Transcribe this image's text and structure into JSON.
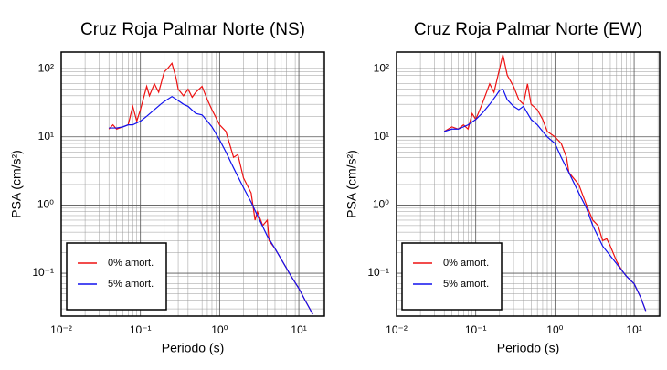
{
  "chart_data": [
    {
      "type": "line",
      "title": "Cruz Roja Palmar Norte (NS)",
      "xlabel": "Periodo (s)",
      "ylabel": "PSA (cm/s²)",
      "xscale": "log",
      "yscale": "log",
      "grid": true,
      "legend": "lower left",
      "xlim": [
        0.01,
        21
      ],
      "ylim": [
        0.0235,
        175
      ],
      "xticks": [
        {
          "value": 0.01,
          "label": "10⁻²"
        },
        {
          "value": 0.1,
          "label": "10⁻¹"
        },
        {
          "value": 1,
          "label": "10⁰"
        },
        {
          "value": 10,
          "label": "10¹"
        }
      ],
      "yticks": [
        {
          "value": 0.1,
          "label": "10⁻¹"
        },
        {
          "value": 1,
          "label": "10⁰"
        },
        {
          "value": 10,
          "label": "10¹"
        },
        {
          "value": 100,
          "label": "10²"
        }
      ],
      "xminorticks": [
        0.02,
        0.03,
        0.04,
        0.05,
        0.06,
        0.07,
        0.08,
        0.09,
        0.2,
        0.3,
        0.4,
        0.5,
        0.6,
        0.7,
        0.8,
        0.9,
        2,
        3,
        4,
        5,
        6,
        7,
        8,
        9,
        20
      ],
      "yminorticks": [
        0.03,
        0.04,
        0.05,
        0.06,
        0.07,
        0.08,
        0.09,
        0.2,
        0.3,
        0.4,
        0.5,
        0.6,
        0.7,
        0.8,
        0.9,
        2,
        3,
        4,
        5,
        6,
        7,
        8,
        9,
        20,
        30,
        40,
        50,
        60,
        70,
        80,
        90
      ],
      "series": [
        {
          "name": "0% amort.",
          "color": "#ee1111",
          "x": [
            0.04,
            0.045,
            0.05,
            0.06,
            0.07,
            0.08,
            0.09,
            0.1,
            0.12,
            0.13,
            0.15,
            0.17,
            0.2,
            0.22,
            0.25,
            0.28,
            0.3,
            0.35,
            0.4,
            0.45,
            0.5,
            0.6,
            0.7,
            0.8,
            1.0,
            1.2,
            1.5,
            1.7,
            2,
            2.5,
            2.8,
            3,
            3.5,
            4,
            4.2,
            5,
            6,
            8,
            10,
            12,
            15
          ],
          "values": [
            13,
            15,
            13,
            14,
            15,
            28,
            17,
            25,
            55,
            40,
            60,
            45,
            90,
            100,
            120,
            75,
            50,
            40,
            50,
            38,
            45,
            55,
            35,
            25,
            15,
            12,
            5,
            5.5,
            2.5,
            1.5,
            0.6,
            0.8,
            0.5,
            0.6,
            0.3,
            0.23,
            0.16,
            0.09,
            0.06,
            0.04,
            0.025
          ]
        },
        {
          "name": "5% amort.",
          "color": "#1111ee",
          "x": [
            0.04,
            0.05,
            0.06,
            0.07,
            0.08,
            0.1,
            0.12,
            0.15,
            0.18,
            0.2,
            0.25,
            0.3,
            0.35,
            0.4,
            0.5,
            0.6,
            0.7,
            0.8,
            1.0,
            1.2,
            1.5,
            2,
            2.5,
            3,
            4,
            5,
            6,
            8,
            10,
            12,
            15
          ],
          "values": [
            13.5,
            13.5,
            14,
            15,
            15,
            17,
            20,
            25,
            30,
            33,
            39,
            34,
            30,
            28,
            22,
            21,
            17,
            14,
            9,
            6,
            3.5,
            1.8,
            1.1,
            0.7,
            0.35,
            0.23,
            0.16,
            0.09,
            0.06,
            0.04,
            0.025
          ]
        }
      ]
    },
    {
      "type": "line",
      "title": "Cruz Roja Palmar Norte (EW)",
      "xlabel": "Periodo (s)",
      "ylabel": "PSA (cm/s²)",
      "xscale": "log",
      "yscale": "log",
      "grid": true,
      "legend": "lower left",
      "xlim": [
        0.01,
        21
      ],
      "ylim": [
        0.0235,
        175
      ],
      "xticks": [
        {
          "value": 0.01,
          "label": "10⁻²"
        },
        {
          "value": 0.1,
          "label": "10⁻¹"
        },
        {
          "value": 1,
          "label": "10⁰"
        },
        {
          "value": 10,
          "label": "10¹"
        }
      ],
      "yticks": [
        {
          "value": 0.1,
          "label": "10⁻¹"
        },
        {
          "value": 1,
          "label": "10⁰"
        },
        {
          "value": 10,
          "label": "10¹"
        },
        {
          "value": 100,
          "label": "10²"
        }
      ],
      "xminorticks": [
        0.02,
        0.03,
        0.04,
        0.05,
        0.06,
        0.07,
        0.08,
        0.09,
        0.2,
        0.3,
        0.4,
        0.5,
        0.6,
        0.7,
        0.8,
        0.9,
        2,
        3,
        4,
        5,
        6,
        7,
        8,
        9,
        20
      ],
      "yminorticks": [
        0.03,
        0.04,
        0.05,
        0.06,
        0.07,
        0.08,
        0.09,
        0.2,
        0.3,
        0.4,
        0.5,
        0.6,
        0.7,
        0.8,
        0.9,
        2,
        3,
        4,
        5,
        6,
        7,
        8,
        9,
        20,
        30,
        40,
        50,
        60,
        70,
        80,
        90
      ],
      "series": [
        {
          "name": "0% amort.",
          "color": "#ee1111",
          "x": [
            0.04,
            0.05,
            0.06,
            0.07,
            0.08,
            0.09,
            0.1,
            0.12,
            0.15,
            0.17,
            0.2,
            0.22,
            0.25,
            0.3,
            0.35,
            0.4,
            0.45,
            0.5,
            0.6,
            0.7,
            0.8,
            1.0,
            1.2,
            1.4,
            1.5,
            2,
            2.5,
            3,
            3.5,
            4,
            4.5,
            5,
            6,
            7,
            8,
            10,
            12,
            14
          ],
          "values": [
            12,
            14,
            13,
            15,
            13,
            22,
            18,
            30,
            60,
            45,
            100,
            160,
            80,
            55,
            35,
            30,
            60,
            30,
            25,
            18,
            12,
            10,
            8,
            5,
            3,
            2,
            1,
            0.6,
            0.5,
            0.3,
            0.32,
            0.25,
            0.15,
            0.11,
            0.09,
            0.07,
            0.045,
            0.028
          ]
        },
        {
          "name": "5% amort.",
          "color": "#1111ee",
          "x": [
            0.04,
            0.05,
            0.06,
            0.07,
            0.08,
            0.1,
            0.12,
            0.15,
            0.18,
            0.2,
            0.22,
            0.25,
            0.3,
            0.35,
            0.4,
            0.5,
            0.6,
            0.7,
            0.8,
            1.0,
            1.2,
            1.5,
            2,
            2.5,
            3,
            4,
            5,
            7,
            8,
            10,
            12,
            14
          ],
          "values": [
            12,
            13,
            13,
            14,
            15,
            18,
            22,
            30,
            40,
            48,
            50,
            35,
            28,
            25,
            28,
            18,
            15,
            12,
            10,
            8,
            5,
            3,
            1.5,
            0.9,
            0.5,
            0.25,
            0.18,
            0.11,
            0.09,
            0.07,
            0.045,
            0.028
          ]
        }
      ]
    }
  ]
}
